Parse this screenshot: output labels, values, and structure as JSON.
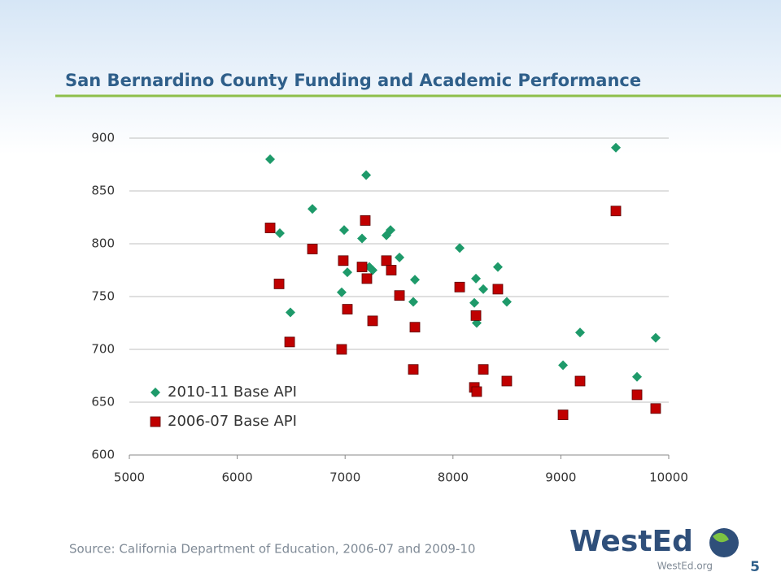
{
  "slide": {
    "title": "San Bernardino County Funding and Academic Performance",
    "source": "Source: California Department of Education, 2006-07 and 2009-10",
    "logo": "WestEd",
    "website": "WestEd.org",
    "page_number": "5"
  },
  "chart_data": {
    "type": "scatter",
    "xlim": [
      5000,
      10000
    ],
    "xticks": [
      5000,
      6000,
      7000,
      8000,
      9000,
      10000
    ],
    "ylim": [
      600,
      900
    ],
    "yticks": [
      600,
      650,
      700,
      750,
      800,
      850,
      900
    ],
    "grid": true,
    "legend": "lower-left",
    "series": [
      {
        "name": "2010-11 Base API",
        "color": "#1e9a6a",
        "marker": "diamond",
        "x": [
          6305,
          6395,
          6493,
          6697,
          6991,
          6968,
          7021,
          7157,
          7195,
          7225,
          7255,
          7383,
          7421,
          7504,
          7632,
          7647,
          8062,
          8213,
          8198,
          8220,
          8281,
          8416,
          8499,
          9020,
          9178,
          9510,
          9706,
          9879
        ],
        "values": [
          880,
          810,
          735,
          833,
          813,
          754,
          773,
          805,
          865,
          778,
          775,
          808,
          813,
          787,
          745,
          766,
          796,
          767,
          744,
          725,
          757,
          778,
          745,
          685,
          716,
          891,
          674,
          711
        ]
      },
      {
        "name": "2006-07 Base API",
        "color": "#c00000",
        "marker": "square",
        "x": [
          6305,
          6388,
          6486,
          6697,
          6983,
          6968,
          7021,
          7157,
          7187,
          7202,
          7255,
          7383,
          7428,
          7504,
          7632,
          7647,
          8062,
          8198,
          8213,
          8220,
          8281,
          8416,
          8499,
          9020,
          9178,
          9510,
          9706,
          9879
        ],
        "values": [
          815,
          762,
          707,
          795,
          784,
          700,
          738,
          778,
          822,
          767,
          727,
          784,
          775,
          751,
          681,
          721,
          759,
          664,
          732,
          660,
          681,
          757,
          670,
          638,
          670,
          831,
          657,
          644
        ]
      }
    ]
  }
}
